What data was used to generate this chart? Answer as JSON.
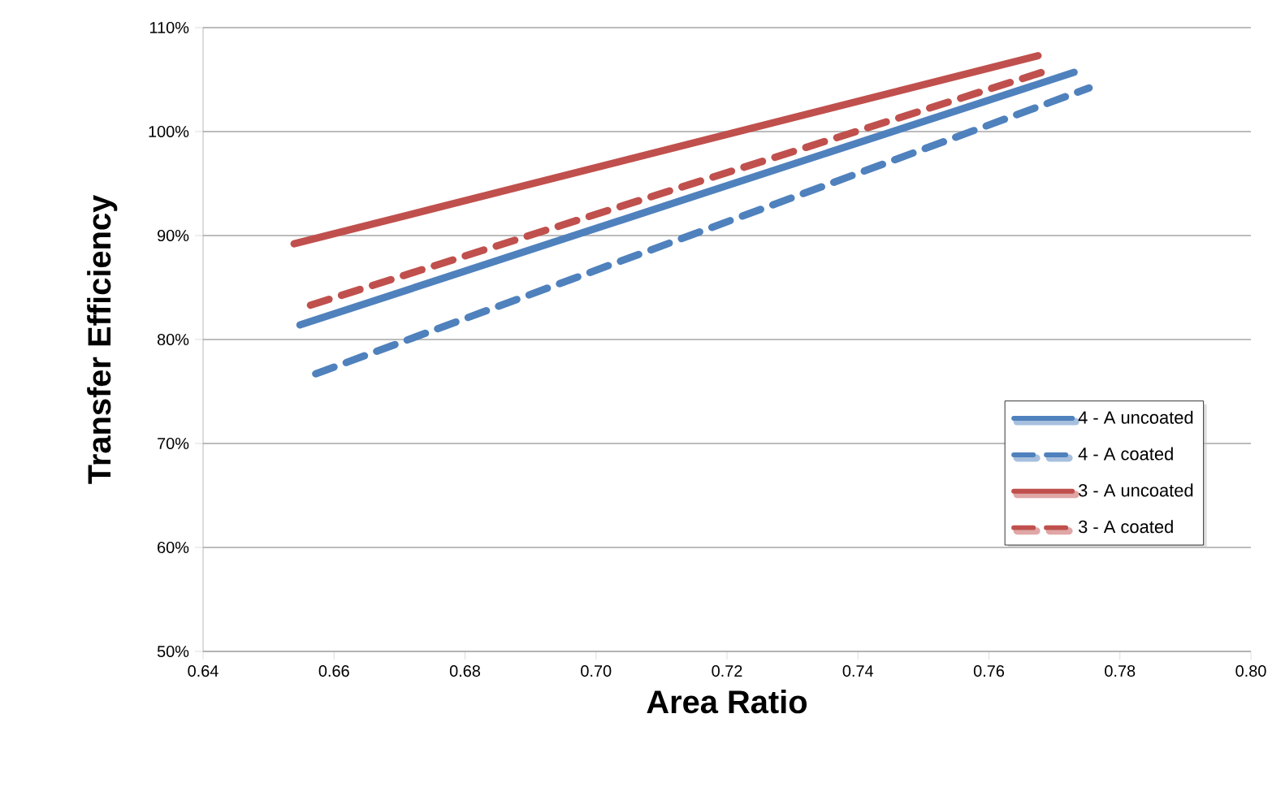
{
  "chart_data": {
    "type": "line",
    "xlabel": "Area Ratio",
    "ylabel": "Transfer Efficiency",
    "xlim": [
      0.64,
      0.8
    ],
    "xticks": [
      {
        "value": 0.64,
        "label": "0.64"
      },
      {
        "value": 0.66,
        "label": "0.66"
      },
      {
        "value": 0.68,
        "label": "0.68"
      },
      {
        "value": 0.7,
        "label": "0.70"
      },
      {
        "value": 0.72,
        "label": "0.72"
      },
      {
        "value": 0.74,
        "label": "0.74"
      },
      {
        "value": 0.76,
        "label": "0.76"
      },
      {
        "value": 0.78,
        "label": "0.78"
      },
      {
        "value": 0.8,
        "label": "0.80"
      }
    ],
    "ylim": [
      50,
      110
    ],
    "yticks": [
      {
        "value": 50,
        "label": "50%"
      },
      {
        "value": 60,
        "label": "60%"
      },
      {
        "value": 70,
        "label": "70%"
      },
      {
        "value": 80,
        "label": "80%"
      },
      {
        "value": 90,
        "label": "90%"
      },
      {
        "value": 100,
        "label": "100%"
      },
      {
        "value": 110,
        "label": "110%"
      }
    ],
    "grid": "y",
    "legend": "right",
    "marker": "none",
    "series": [
      {
        "name": "4 - A uncoated",
        "color": "#4f81bd",
        "line_style": "solid",
        "x": [
          0.6548,
          0.773
        ],
        "values": [
          81.4,
          105.7
        ]
      },
      {
        "name": "4 - A coated",
        "color": "#4f81bd",
        "line_style": "dashed",
        "x": [
          0.6572,
          0.7753
        ],
        "values": [
          76.7,
          104.2
        ]
      },
      {
        "name": "3 - A uncoated",
        "color": "#c0504d",
        "line_style": "solid",
        "x": [
          0.6539,
          0.7675
        ],
        "values": [
          89.2,
          107.3
        ]
      },
      {
        "name": "3 - A coated",
        "color": "#c0504d",
        "line_style": "dashed",
        "x": [
          0.6564,
          0.7696
        ],
        "values": [
          83.3,
          106.0
        ]
      }
    ]
  }
}
